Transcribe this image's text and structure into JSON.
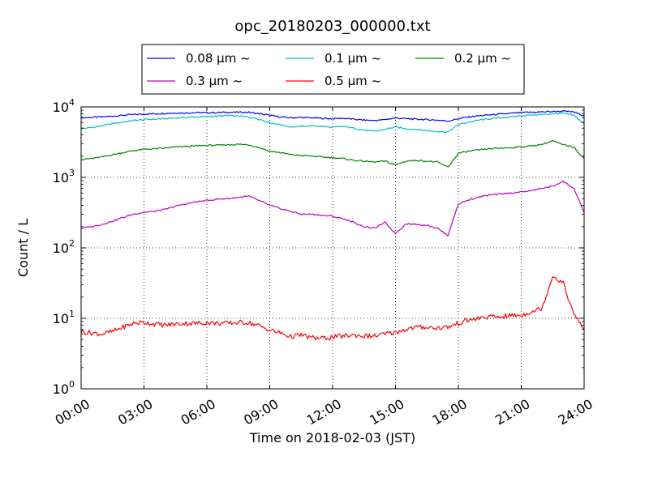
{
  "chart_data": {
    "type": "line",
    "title": "opc_20180203_000000.txt",
    "xlabel": "Time on 2018-02-03 (JST)",
    "ylabel": "Count / L",
    "yscale": "log",
    "ylim": [
      1,
      10000
    ],
    "xlim": [
      "00:00",
      "24:00"
    ],
    "grid": true,
    "legend_placement": "top-center",
    "x_ticks": [
      "00:00",
      "03:00",
      "06:00",
      "09:00",
      "12:00",
      "15:00",
      "18:00",
      "21:00",
      "24:00"
    ],
    "y_ticks": [
      {
        "base": "10",
        "exp": "0"
      },
      {
        "base": "10",
        "exp": "1"
      },
      {
        "base": "10",
        "exp": "2"
      },
      {
        "base": "10",
        "exp": "3"
      },
      {
        "base": "10",
        "exp": "4"
      }
    ],
    "x_hours": [
      0,
      0.5,
      1,
      1.5,
      2,
      2.5,
      3,
      3.5,
      4,
      4.5,
      5,
      5.5,
      6,
      6.5,
      7,
      7.5,
      8,
      8.5,
      9,
      9.5,
      10,
      10.5,
      11,
      11.5,
      12,
      12.5,
      13,
      13.5,
      14,
      14.5,
      15,
      15.5,
      16,
      16.5,
      17,
      17.5,
      18,
      18.5,
      19,
      19.5,
      20,
      20.5,
      21,
      21.5,
      22,
      22.5,
      23,
      23.5,
      24
    ],
    "series": [
      {
        "name": "0.08 μm ~",
        "color": "#0000ff",
        "values": [
          7000,
          7100,
          7200,
          7400,
          7600,
          7800,
          7900,
          8000,
          8100,
          8200,
          8200,
          8300,
          8300,
          8300,
          8400,
          8400,
          8400,
          8000,
          7600,
          7200,
          7000,
          7100,
          7000,
          6900,
          6800,
          6900,
          6700,
          6500,
          6400,
          6600,
          7000,
          6800,
          6700,
          6600,
          6500,
          6300,
          6800,
          7200,
          7500,
          7700,
          7900,
          8100,
          8300,
          8400,
          8500,
          8600,
          8700,
          8500,
          7500
        ]
      },
      {
        "name": "0.1 μm ~",
        "color": "#00bfbf",
        "values": [
          4900,
          5100,
          5400,
          5800,
          6100,
          6400,
          6600,
          6700,
          6800,
          7000,
          7100,
          7200,
          7300,
          7400,
          7500,
          7400,
          7200,
          6700,
          6000,
          5600,
          5200,
          5300,
          5400,
          5300,
          5100,
          5300,
          5000,
          4700,
          4500,
          4800,
          5200,
          4900,
          4800,
          4600,
          4500,
          4400,
          5600,
          6100,
          6500,
          6800,
          7000,
          7200,
          7500,
          7700,
          7800,
          8000,
          8100,
          7600,
          5800
        ]
      },
      {
        "name": "0.2 μm ~",
        "color": "#008000",
        "values": [
          1800,
          1850,
          1950,
          2100,
          2250,
          2400,
          2500,
          2550,
          2600,
          2700,
          2750,
          2800,
          2850,
          2850,
          2900,
          2950,
          2900,
          2650,
          2350,
          2250,
          2100,
          2050,
          2000,
          1950,
          1900,
          1850,
          1750,
          1700,
          1650,
          1700,
          1500,
          1700,
          1750,
          1700,
          1650,
          1400,
          2200,
          2350,
          2450,
          2550,
          2600,
          2650,
          2700,
          2800,
          2950,
          3300,
          2900,
          2700,
          1850
        ]
      },
      {
        "name": "0.3 μm ~",
        "color": "#bf00bf",
        "values": [
          190,
          200,
          215,
          240,
          270,
          300,
          320,
          330,
          350,
          390,
          420,
          450,
          470,
          490,
          500,
          520,
          540,
          470,
          400,
          360,
          330,
          300,
          300,
          290,
          280,
          260,
          230,
          200,
          190,
          230,
          160,
          220,
          215,
          210,
          190,
          150,
          420,
          480,
          530,
          560,
          580,
          600,
          620,
          650,
          700,
          750,
          880,
          700,
          320
        ]
      },
      {
        "name": "0.5 μm ~",
        "color": "#ff0000",
        "values": [
          6.5,
          6.2,
          6.0,
          6.5,
          7.5,
          8.5,
          8.8,
          8.3,
          8.0,
          8.3,
          8.5,
          8.5,
          8.7,
          8.5,
          8.5,
          8.7,
          8.7,
          7.8,
          6.8,
          6.2,
          5.5,
          5.8,
          5.3,
          5.2,
          5.4,
          5.6,
          5.8,
          5.6,
          5.6,
          6.0,
          6.3,
          7.0,
          7.5,
          7.5,
          7.3,
          7.5,
          8.5,
          9.5,
          10.0,
          10.5,
          10.5,
          11.0,
          11.0,
          12.5,
          14.0,
          40.0,
          32.0,
          11.5,
          7.0
        ]
      }
    ]
  }
}
